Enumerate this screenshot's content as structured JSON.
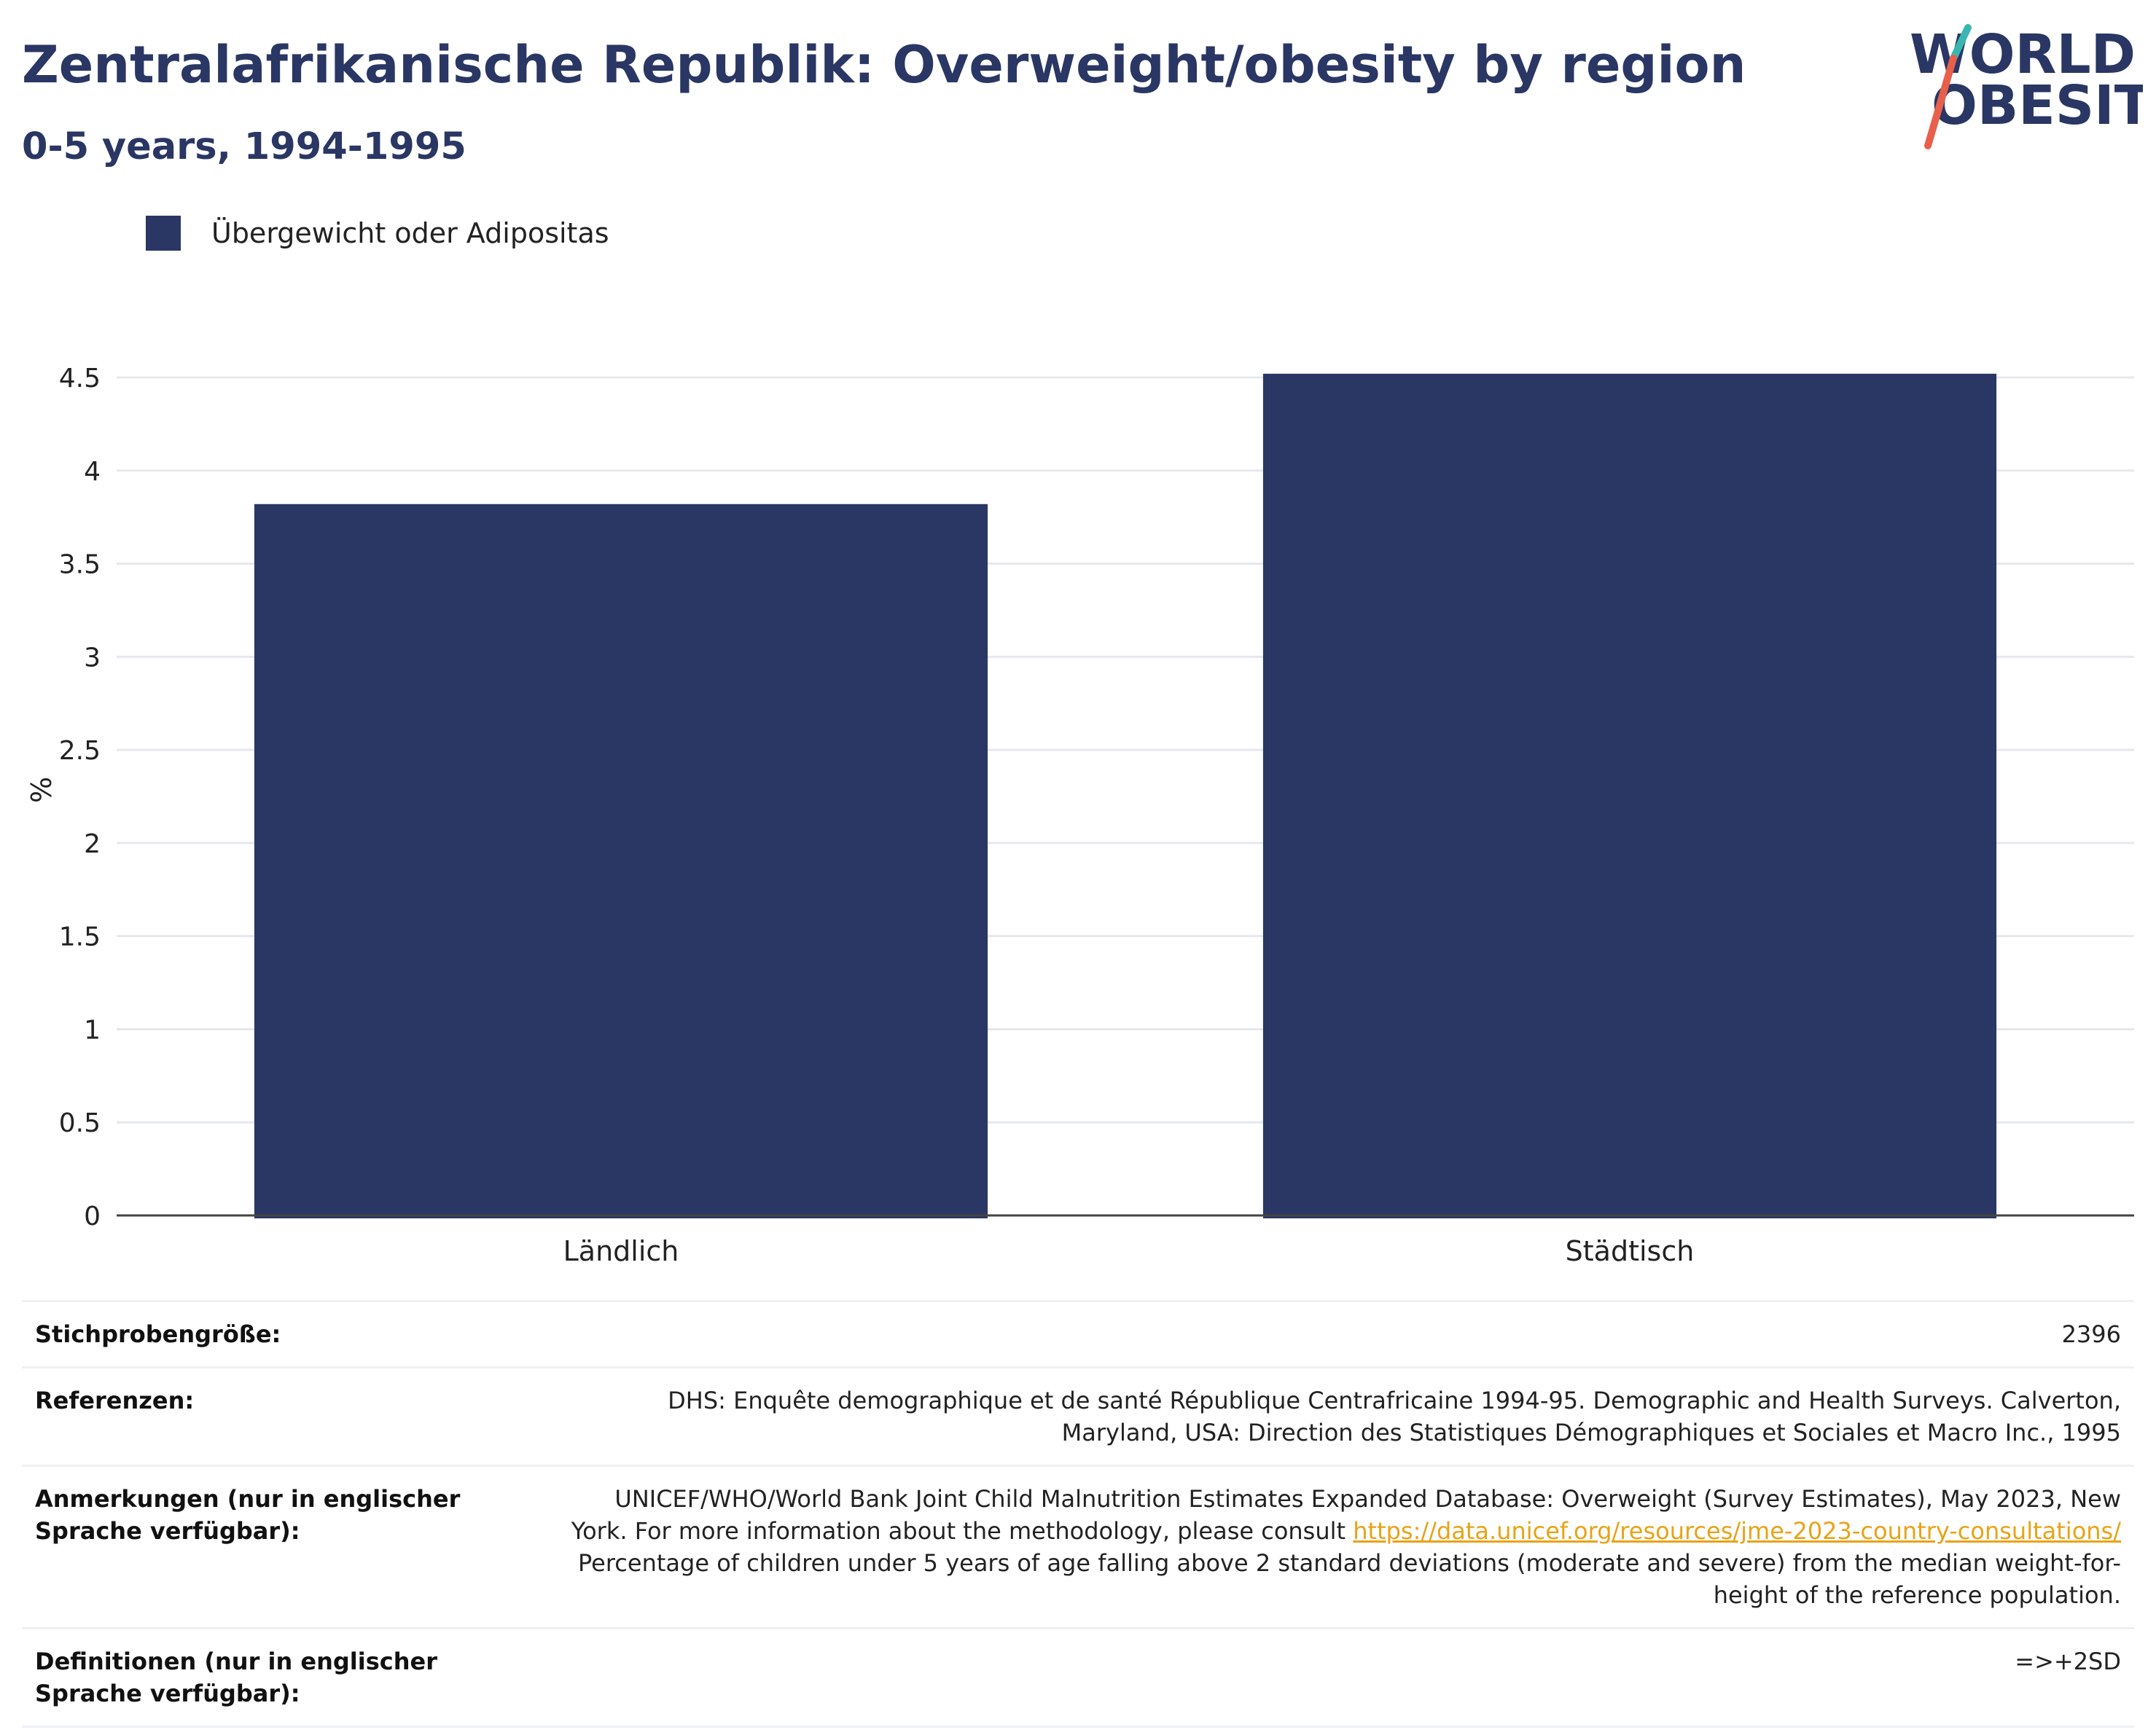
{
  "header": {
    "title": "Zentralafrikanische Republik: Overweight/obesity by region",
    "subtitle": "0-5 years, 1994-1995"
  },
  "logo": {
    "line1": "WORLD",
    "line2": "OBESITY",
    "colors": {
      "text": "#2a3663",
      "slash_top": "#3ab6b1",
      "slash_bottom": "#e8604c"
    }
  },
  "legend": {
    "items": [
      {
        "label": "Übergewicht oder Adipositas",
        "color": "#2a3663"
      }
    ]
  },
  "chart_data": {
    "type": "bar",
    "categories": [
      "Ländlich",
      "Städtisch"
    ],
    "series": [
      {
        "name": "Übergewicht oder Adipositas",
        "values": [
          3.82,
          4.52
        ],
        "color": "#2a3663"
      }
    ],
    "ylabel": "%",
    "ylim": [
      0,
      4.5
    ],
    "yticks": [
      "0",
      "0.5",
      "1",
      "1.5",
      "2",
      "2.5",
      "3",
      "3.5",
      "4",
      "4.5"
    ],
    "grid": true
  },
  "meta": {
    "sample_size": {
      "label": "Stichprobengröße:",
      "value": "2396"
    },
    "references": {
      "label": "Referenzen:",
      "value": "DHS: Enquête demographique et de santé République Centrafricaine 1994-95. Demographic and Health Surveys. Calverton, Maryland, USA: Direction des Statistiques Démographiques et Sociales et Macro Inc., 1995"
    },
    "notes": {
      "label": "Anmerkungen (nur in englischer Sprache verfügbar):",
      "text_before": "UNICEF/WHO/World Bank Joint Child Malnutrition Estimates Expanded Database: Overweight (Survey Estimates), May 2023, New York. For more information about the methodology, please consult ",
      "link": "https://data.unicef.org/resources/jme-2023-country-consultations/",
      "text_after": " Percentage of children under 5 years of age falling above 2 standard deviations (moderate and severe) from the median weight-for-height of the reference population."
    },
    "definitions": {
      "label": "Definitionen (nur in englischer Sprache verfügbar):",
      "value": "=>+2SD"
    }
  }
}
